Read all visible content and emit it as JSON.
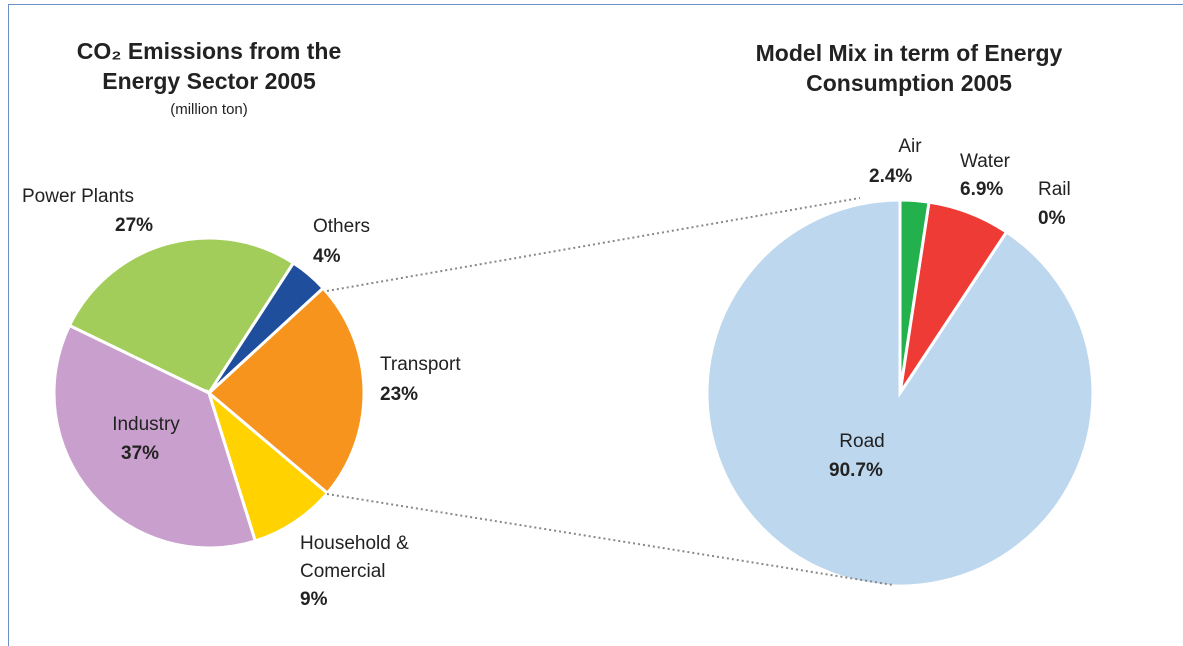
{
  "chart_data": [
    {
      "type": "pie",
      "title": "CO₂ Emissions from the Energy Sector 2005",
      "subtitle": "(million ton)",
      "categories": [
        "Others",
        "Transport",
        "Household & Comercial",
        "Industry",
        "Power Plants"
      ],
      "values": [
        4,
        23,
        9,
        37,
        27
      ],
      "value_labels": [
        "4%",
        "23%",
        "9%",
        "37%",
        "27%"
      ],
      "colors": [
        "#1f4e9c",
        "#f7941d",
        "#ffd200",
        "#c9a0cd",
        "#a2cd5a"
      ]
    },
    {
      "type": "pie",
      "title": "Model Mix in term of Energy Consumption 2005",
      "categories": [
        "Air",
        "Water",
        "Rail",
        "Road"
      ],
      "values": [
        2.4,
        6.9,
        0,
        90.7
      ],
      "value_labels": [
        "2.4%",
        "6.9%",
        "0%",
        "90.7%"
      ],
      "colors": [
        "#22b14c",
        "#ee3b36",
        "#7f7f7f",
        "#bdd7ee"
      ]
    }
  ]
}
